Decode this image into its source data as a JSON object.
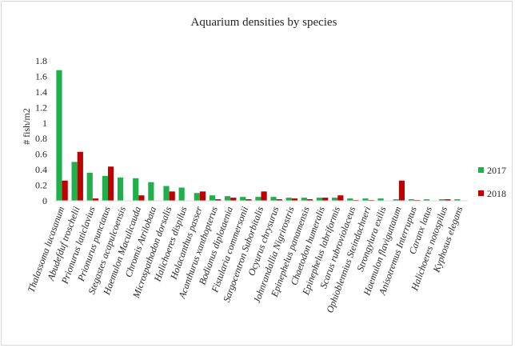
{
  "chart_data": {
    "type": "bar",
    "title": "Aquarium densities by species",
    "xlabel": "",
    "ylabel": "# fish/m2",
    "ylim": [
      0,
      1.8
    ],
    "yticks": [
      "0",
      "0.2",
      "0.4",
      "0.6",
      "0.8",
      "1",
      "1.2",
      "1.4",
      "1.6",
      "1.8"
    ],
    "grid": false,
    "legend_position": "right",
    "categories": [
      "Thalassoma lucasanum",
      "Abudefduf troschelii",
      "Prionurus laticlavius",
      "Prionurus punctatus",
      "Stegastes acapulcoensis",
      "Haemulon Maculicauda",
      "Chromis Atrilobata",
      "Microspathodon dorsalis",
      "Halichoeres dispilus",
      "Holacanthus passer",
      "Acanthurus xanthopterus",
      "Bodianus diplotaenia",
      "Fistularia commersonii",
      "Sargocentron Suborbitalis",
      "Ocyurus chrysurus",
      "Johnrandallia Nigrirostris",
      "Epinephelus panamensis",
      "Chaetodon humeralis",
      "Epinephelus labriformis",
      "Scarus rubroviolaceus",
      "Ophioblennius Steindachneri",
      "Strongylura exilis",
      "Haemulon flaviguttatum",
      "Anisotremus Interruptus",
      "Caranx latus",
      "Halichoeres notospilus",
      "Kyphosus elegans"
    ],
    "series": [
      {
        "name": "2017",
        "color": "#1fb04b",
        "values": [
          1.68,
          0.5,
          0.36,
          0.32,
          0.3,
          0.29,
          0.24,
          0.19,
          0.17,
          0.1,
          0.07,
          0.06,
          0.05,
          0.05,
          0.05,
          0.04,
          0.04,
          0.04,
          0.04,
          0.03,
          0.03,
          0.03,
          0.02,
          0.02,
          0.02,
          0.02,
          0.02
        ]
      },
      {
        "name": "2018",
        "color": "#c00000",
        "values": [
          0.26,
          0.63,
          0.03,
          0.44,
          0.0,
          0.07,
          0.0,
          0.12,
          0.0,
          0.12,
          0.02,
          0.04,
          0.02,
          0.12,
          0.02,
          0.03,
          0.02,
          0.04,
          0.07,
          0.01,
          0.01,
          0.0,
          0.26,
          0.01,
          0.0,
          0.02,
          0.0
        ]
      }
    ]
  }
}
